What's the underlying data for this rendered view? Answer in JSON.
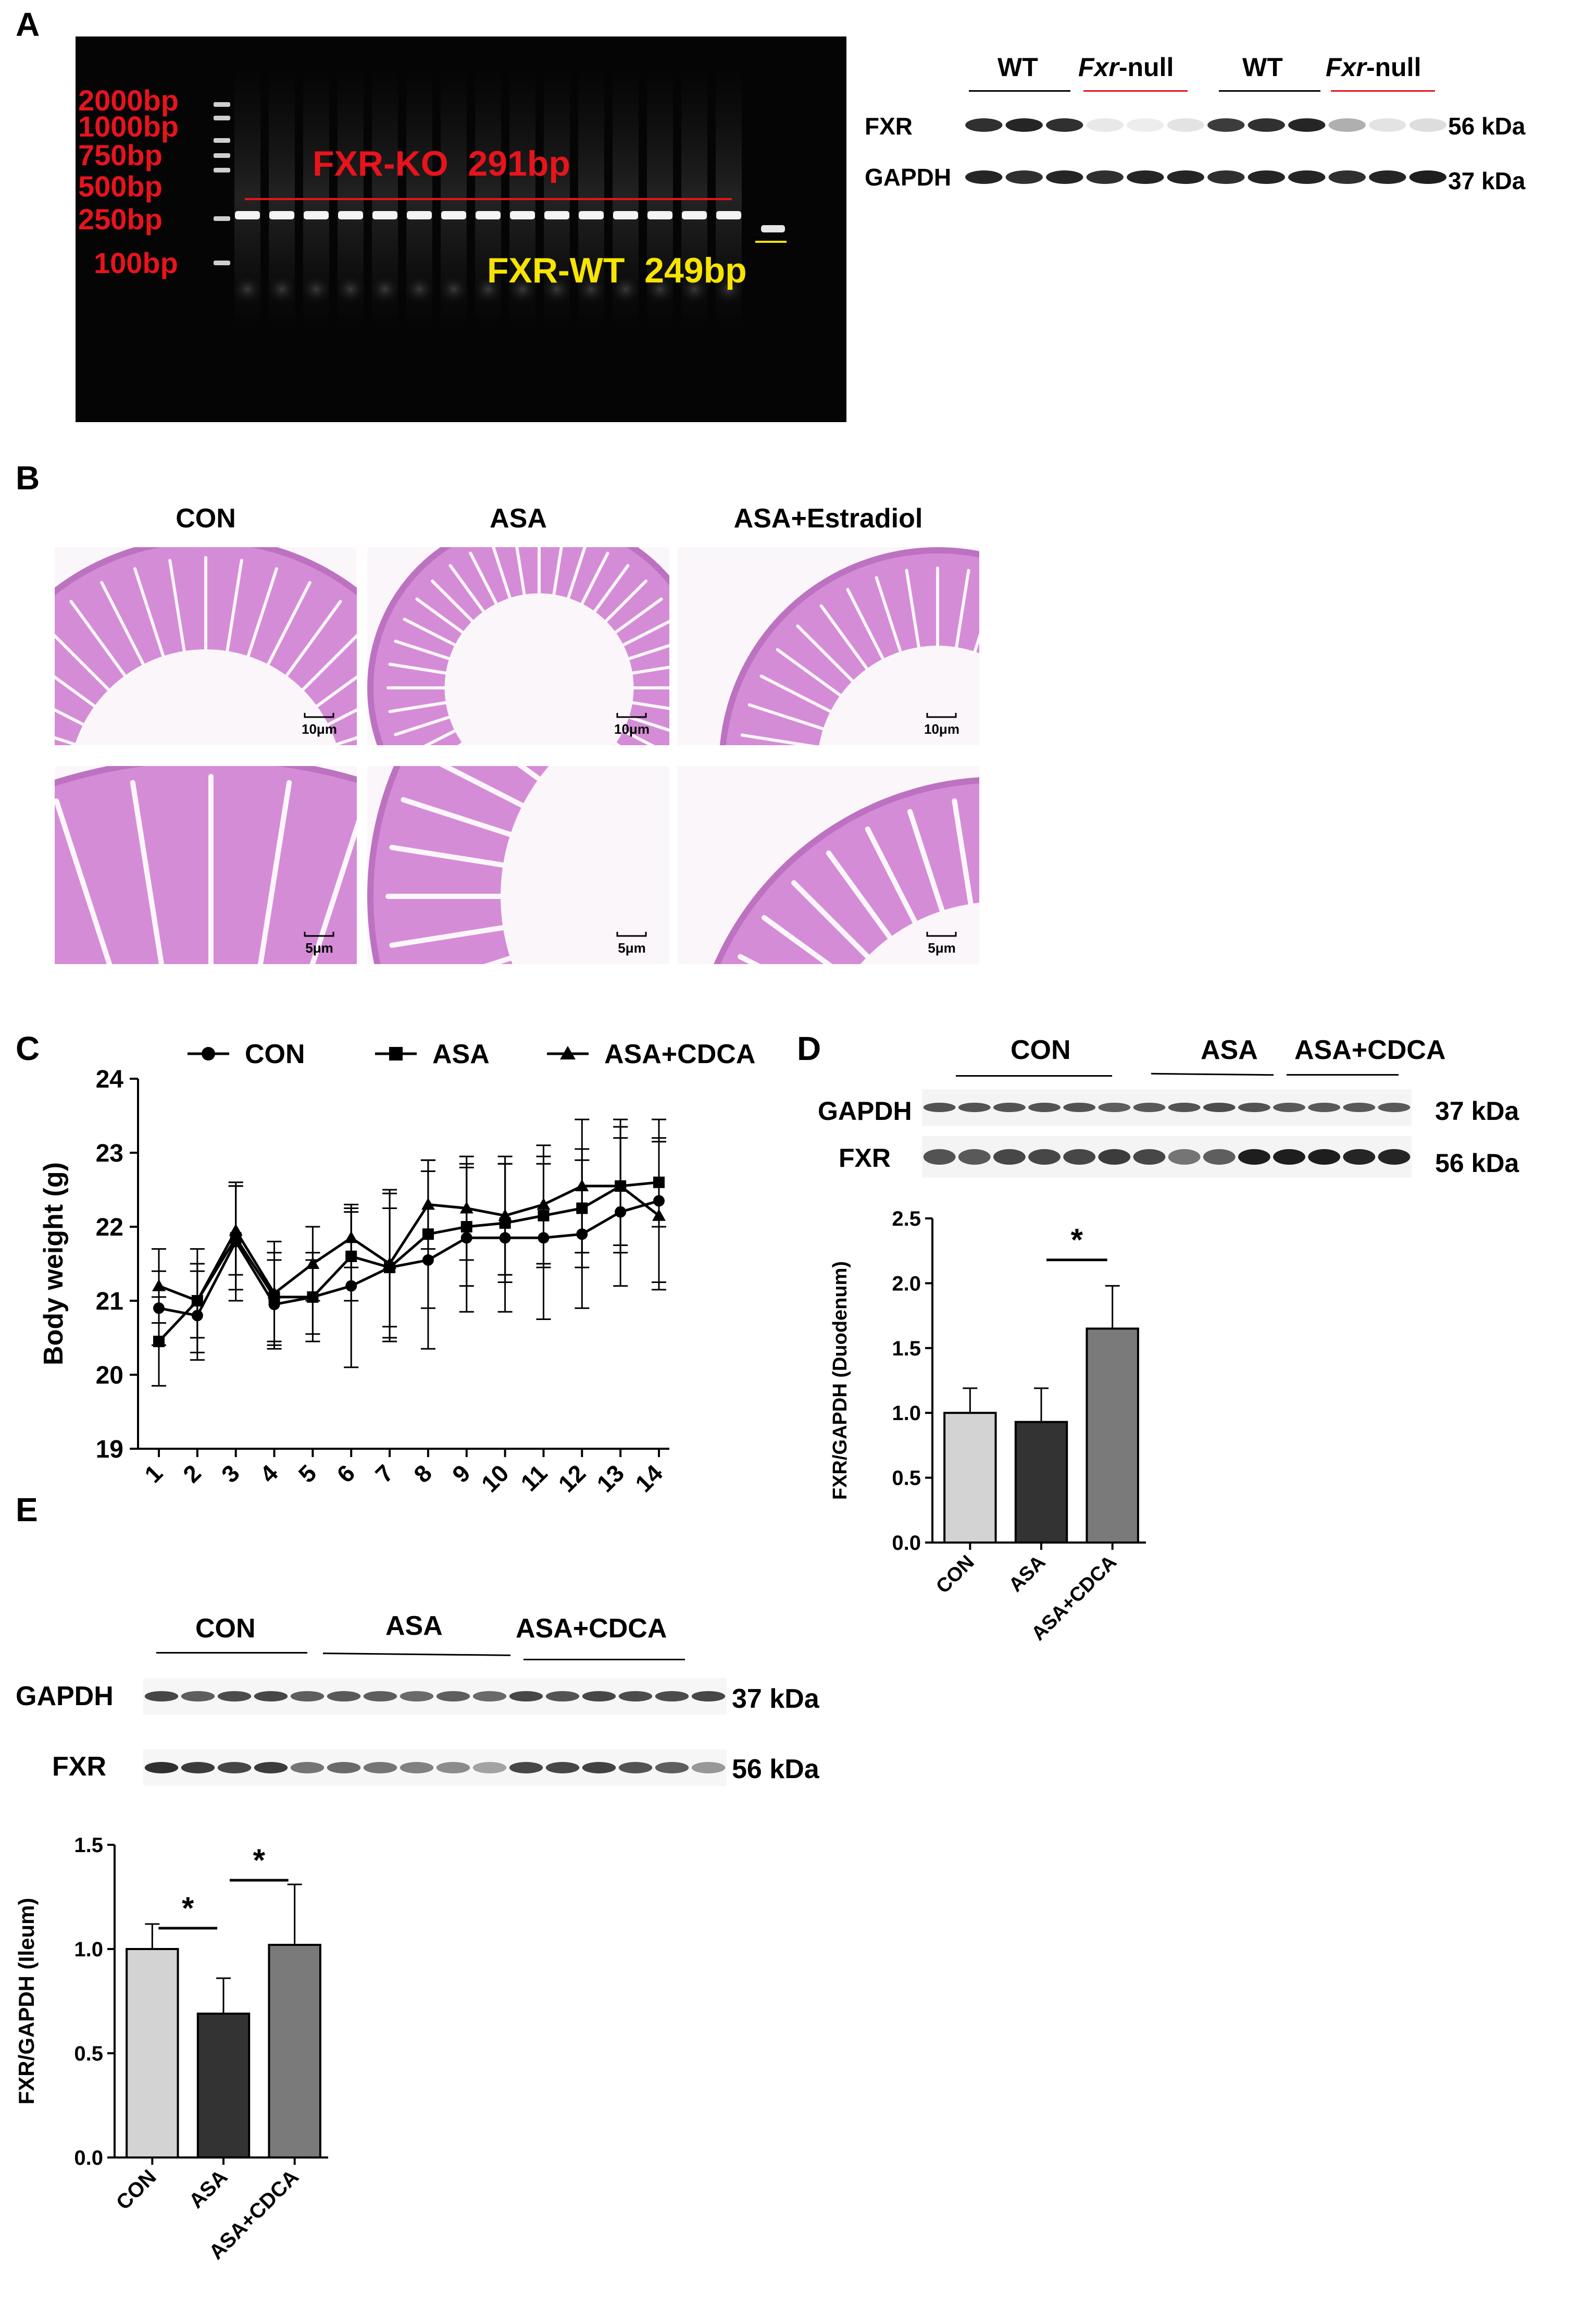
{
  "panelA": {
    "letter": "A",
    "gel": {
      "ladder": [
        "2000bp",
        "1000bp",
        "750bp",
        "500bp",
        "250bp",
        "100bp"
      ],
      "ko_label": "FXR-KO  291bp",
      "wt_label": "FXR-WT  249bp",
      "colors": {
        "ko": "#e8141c",
        "wt": "#f7e400",
        "background": "#050505"
      }
    },
    "blot": {
      "groups": [
        {
          "name_prefix": "WT",
          "name_suffix": "",
          "italic": false
        },
        {
          "name_prefix": "Fxr",
          "name_suffix": "-null",
          "italic": true
        },
        {
          "name_prefix": "WT",
          "name_suffix": "",
          "italic": false
        },
        {
          "name_prefix": "Fxr",
          "name_suffix": "-null",
          "italic": true
        }
      ],
      "rows": [
        {
          "name": "FXR",
          "kda": "56 kDa"
        },
        {
          "name": "GAPDH",
          "kda": "37 kDa"
        }
      ]
    }
  },
  "panelB": {
    "letter": "B",
    "columns": [
      "CON",
      "ASA",
      "ASA+Estradiol"
    ],
    "scale_top": "10μm",
    "scale_bottom": "5μm"
  },
  "panelC": {
    "letter": "C",
    "legend": [
      {
        "name": "CON",
        "marker": "circle"
      },
      {
        "name": "ASA",
        "marker": "square"
      },
      {
        "name": "ASA+CDCA",
        "marker": "triangle"
      }
    ],
    "ylabel": "Body weight (g)",
    "chart_data": {
      "type": "line",
      "x": [
        1,
        2,
        3,
        4,
        5,
        6,
        7,
        8,
        9,
        10,
        11,
        12,
        13,
        14
      ],
      "ylim": [
        19,
        24
      ],
      "yticks": [
        19,
        20,
        21,
        22,
        23,
        24
      ],
      "ylabel": "Body weight (g)",
      "series": [
        {
          "name": "CON",
          "values": [
            20.9,
            20.8,
            21.8,
            20.95,
            21.05,
            21.2,
            21.45,
            21.55,
            21.85,
            21.85,
            21.85,
            21.9,
            22.2,
            22.35
          ],
          "err": [
            0.5,
            0.6,
            0.8,
            0.6,
            0.5,
            1.1,
            1.0,
            1.2,
            1.0,
            1.0,
            1.1,
            1.0,
            1.0,
            1.1
          ]
        },
        {
          "name": "ASA",
          "values": [
            20.45,
            21.0,
            21.85,
            21.05,
            21.05,
            21.6,
            21.45,
            21.9,
            22.0,
            22.05,
            22.15,
            22.25,
            22.55,
            22.6
          ],
          "err": [
            0.6,
            0.7,
            0.7,
            0.6,
            0.6,
            0.6,
            0.8,
            1.0,
            0.8,
            0.8,
            0.7,
            0.8,
            0.8,
            0.6
          ]
        },
        {
          "name": "ASA+CDCA",
          "values": [
            21.2,
            21.0,
            21.95,
            21.1,
            21.5,
            21.85,
            21.5,
            22.3,
            22.25,
            22.15,
            22.3,
            22.55,
            22.55,
            22.15
          ],
          "err": [
            0.5,
            0.5,
            0.6,
            0.7,
            0.5,
            0.4,
            1.0,
            0.6,
            0.7,
            0.8,
            0.8,
            0.9,
            0.9,
            1.0
          ]
        }
      ]
    }
  },
  "panelD": {
    "letter": "D",
    "groups": [
      "CON",
      "ASA",
      "ASA+CDCA"
    ],
    "rows": [
      {
        "name": "GAPDH",
        "kda": "37 kDa"
      },
      {
        "name": "FXR",
        "kda": "56 kDa"
      }
    ],
    "ylabel": "FXR/GAPDH (Duodenum)",
    "sig": "*",
    "chart_data": {
      "type": "bar",
      "categories": [
        "CON",
        "ASA",
        "ASA+CDCA"
      ],
      "values": [
        1.0,
        0.93,
        1.65
      ],
      "err": [
        0.19,
        0.26,
        0.33
      ],
      "ylim": [
        0,
        2.5
      ],
      "yticks": [
        "0.0",
        "0.5",
        "1.0",
        "1.5",
        "2.0",
        "2.5"
      ],
      "colors": [
        "#d3d3d3",
        "#333333",
        "#7a7a7a"
      ]
    }
  },
  "panelE": {
    "letter": "E",
    "groups": [
      "CON",
      "ASA",
      "ASA+CDCA"
    ],
    "rows": [
      {
        "name": "GAPDH",
        "kda": "37 kDa"
      },
      {
        "name": "FXR",
        "kda": "56 kDa"
      }
    ],
    "ylabel": "FXR/GAPDH (Ileum)",
    "sig": "*",
    "chart_data": {
      "type": "bar",
      "categories": [
        "CON",
        "ASA",
        "ASA+CDCA"
      ],
      "values": [
        1.0,
        0.69,
        1.02
      ],
      "err": [
        0.12,
        0.17,
        0.29
      ],
      "ylim": [
        0,
        1.5
      ],
      "yticks": [
        "0.0",
        "0.5",
        "1.0",
        "1.5"
      ],
      "colors": [
        "#d3d3d3",
        "#333333",
        "#7a7a7a"
      ]
    }
  }
}
